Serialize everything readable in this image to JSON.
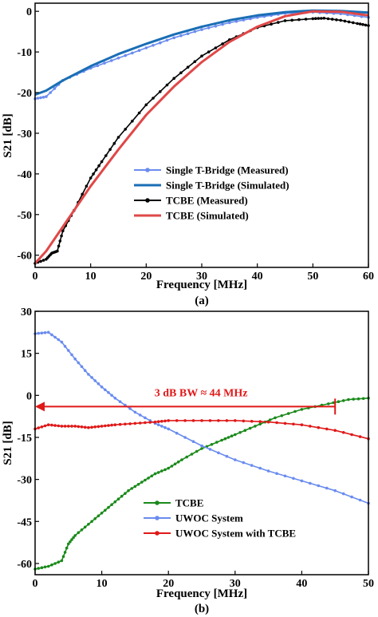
{
  "chart_data": [
    {
      "type": "line",
      "caption": "(a)",
      "xlabel": "Frequency [MHz]",
      "ylabel": "S21 [dB]",
      "xlim": [
        0,
        60
      ],
      "ylim": [
        -63,
        2
      ],
      "xticks": [
        0,
        10,
        20,
        30,
        40,
        50,
        60
      ],
      "yticks": [
        0,
        -10,
        -20,
        -30,
        -40,
        -50,
        -60
      ],
      "grid": false,
      "legend_position": "lower-right",
      "series": [
        {
          "name": "Single T-Bridge (Measured)",
          "color": "#6a8cef",
          "marker": "dot",
          "x": [
            0,
            2,
            5,
            10,
            15,
            20,
            25,
            30,
            35,
            40,
            45,
            50,
            55,
            60
          ],
          "y": [
            -21.5,
            -21,
            -17,
            -14,
            -11.5,
            -9,
            -6.5,
            -4.5,
            -2.8,
            -1.5,
            -0.5,
            -0.2,
            -0.6,
            -1.5
          ]
        },
        {
          "name": "Single T-Bridge (Simulated)",
          "color": "#1a6eb5",
          "marker": "none",
          "x": [
            0,
            2,
            5,
            10,
            15,
            20,
            25,
            30,
            35,
            40,
            45,
            50,
            55,
            60
          ],
          "y": [
            -20.5,
            -19.5,
            -17,
            -13.5,
            -10.5,
            -8,
            -5.7,
            -3.8,
            -2.2,
            -1,
            -0.2,
            0.2,
            0.1,
            -0.3
          ]
        },
        {
          "name": "TCBE (Measured)",
          "color": "#000000",
          "marker": "dot",
          "x": [
            0,
            2,
            3,
            4,
            5,
            7,
            10,
            12,
            15,
            20,
            25,
            30,
            35,
            40,
            45,
            50,
            52,
            55,
            58,
            60
          ],
          "y": [
            -62,
            -61,
            -59.5,
            -59,
            -54,
            -49,
            -41,
            -37,
            -31,
            -23,
            -16.5,
            -11,
            -7,
            -4,
            -2.3,
            -1.8,
            -1.7,
            -2.2,
            -3,
            -3.5
          ]
        },
        {
          "name": "TCBE (Simulated)",
          "color": "#e04848",
          "marker": "none",
          "x": [
            0,
            2,
            5,
            10,
            15,
            20,
            25,
            30,
            35,
            40,
            45,
            50,
            55,
            60
          ],
          "y": [
            -62,
            -59,
            -53,
            -43,
            -34,
            -25.5,
            -18.5,
            -12.5,
            -7.5,
            -3.8,
            -1.2,
            0,
            -0.1,
            -1
          ]
        }
      ]
    },
    {
      "type": "line",
      "caption": "(b)",
      "xlabel": "Frequency [MHz]",
      "ylabel": "S21 [dB]",
      "xlim": [
        0,
        50
      ],
      "ylim": [
        -64,
        30
      ],
      "xticks": [
        0,
        10,
        20,
        30,
        40,
        50
      ],
      "yticks": [
        30,
        15,
        0,
        -15,
        -30,
        -45,
        -60
      ],
      "grid": false,
      "legend_position": "lower-left",
      "annotation": {
        "text": "3 dB BW ≈ 44 MHz",
        "color": "#e01818",
        "y": -4,
        "x_start": 0,
        "x_end": 45
      },
      "series": [
        {
          "name": "TCBE",
          "color": "#1a8a1a",
          "marker": "dot",
          "x": [
            0,
            2,
            4,
            5,
            6,
            8,
            10,
            12,
            14,
            16,
            18,
            20,
            22,
            25,
            28,
            30,
            33,
            36,
            40,
            44,
            47,
            50
          ],
          "y": [
            -62,
            -61,
            -59,
            -53,
            -50,
            -46,
            -42,
            -38,
            -34,
            -31,
            -28,
            -26,
            -23,
            -19,
            -16,
            -14,
            -11,
            -8,
            -5,
            -3,
            -1.5,
            -1
          ]
        },
        {
          "name": "UWOC System",
          "color": "#6a8cef",
          "marker": "dot",
          "x": [
            0,
            2,
            4,
            6,
            8,
            10,
            12,
            15,
            18,
            20,
            25,
            30,
            35,
            40,
            45,
            50
          ],
          "y": [
            22,
            22.5,
            19,
            13,
            7.5,
            3,
            -1,
            -6,
            -10,
            -12,
            -18,
            -23,
            -27,
            -30.5,
            -34,
            -38.5
          ]
        },
        {
          "name": "UWOC System with TCBE",
          "color": "#e01818",
          "marker": "dot",
          "x": [
            0,
            2,
            4,
            6,
            8,
            10,
            12,
            15,
            18,
            20,
            25,
            30,
            35,
            40,
            45,
            50
          ],
          "y": [
            -12,
            -10.5,
            -11,
            -11,
            -11.5,
            -11,
            -10.5,
            -10,
            -9.5,
            -9,
            -9,
            -9,
            -9.5,
            -10.5,
            -12.5,
            -15.5
          ]
        }
      ]
    }
  ]
}
